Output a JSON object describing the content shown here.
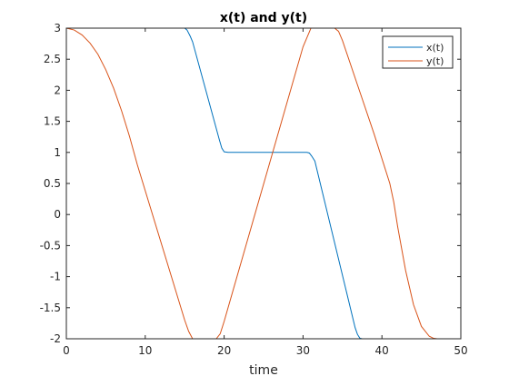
{
  "chart_data": {
    "type": "line",
    "title": "x(t) and y(t)",
    "xlabel": "time",
    "ylabel": "",
    "xlim": [
      0,
      50
    ],
    "ylim": [
      -2,
      3
    ],
    "xticks": [
      0,
      10,
      20,
      30,
      40,
      50
    ],
    "xtick_labels": [
      "0",
      "10",
      "20",
      "30",
      "40",
      "50"
    ],
    "yticks": [
      -2,
      -1.5,
      -1,
      -0.5,
      0,
      0.5,
      1,
      1.5,
      2,
      2.5,
      3
    ],
    "ytick_labels": [
      "-2",
      "-1.5",
      "-1",
      "-0.5",
      "0",
      "0.5",
      "1",
      "1.5",
      "2",
      "2.5",
      "3"
    ],
    "grid": false,
    "legend_position": "top-right",
    "series": [
      {
        "name": "x(t)",
        "color": "#0072BD",
        "x": [
          0,
          15,
          15.3,
          15.7,
          16,
          19.4,
          19.7,
          20,
          20.5,
          30.5,
          30.8,
          31.1,
          31.5,
          36.6,
          36.9,
          37.2,
          37.5,
          50
        ],
        "y": [
          3,
          3,
          2.97,
          2.87,
          2.78,
          1.2,
          1.07,
          1.01,
          1,
          1,
          0.99,
          0.94,
          0.86,
          -1.82,
          -1.93,
          -1.99,
          -2,
          -2
        ]
      },
      {
        "name": "y(t)",
        "color": "#D95319",
        "x": [
          0,
          1,
          2,
          3,
          4,
          5,
          6,
          7,
          8,
          9,
          15,
          15.5,
          16,
          19,
          19.5,
          20,
          30,
          30.5,
          31,
          34,
          34.5,
          35,
          37,
          39,
          41,
          41.5,
          42,
          43,
          44,
          45,
          46,
          46.5,
          47,
          50
        ],
        "y": [
          3,
          2.97,
          2.89,
          2.76,
          2.58,
          2.33,
          2.03,
          1.67,
          1.26,
          0.8,
          -1.7,
          -1.88,
          -2,
          -2,
          -1.92,
          -1.72,
          2.7,
          2.85,
          3,
          3,
          2.95,
          2.8,
          2.05,
          1.3,
          0.5,
          0.2,
          -0.2,
          -0.9,
          -1.45,
          -1.8,
          -1.96,
          -1.99,
          -2,
          -2
        ]
      }
    ]
  }
}
